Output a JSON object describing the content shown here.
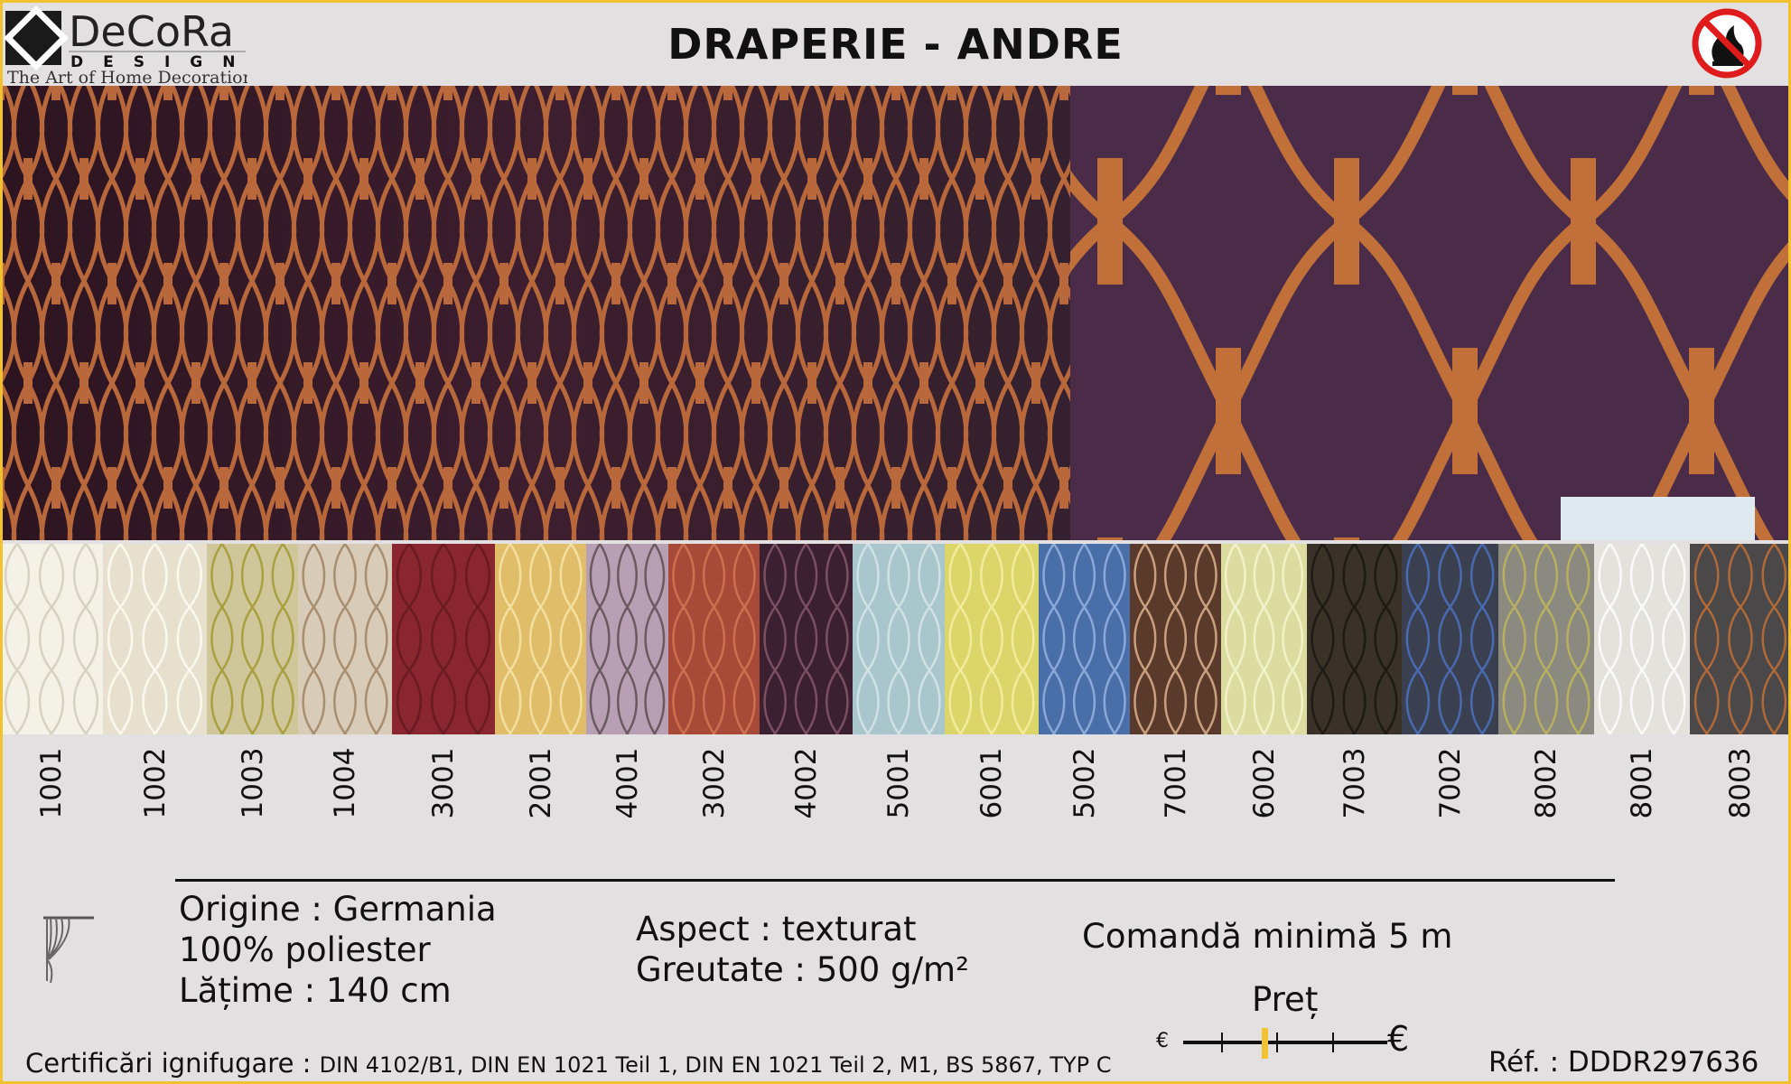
{
  "brand": {
    "name": "DeCoRa",
    "sub": "DESIGN",
    "tagline": "The Art of Home Decoration"
  },
  "title": "DRAPERIE - ANDRE",
  "icons": {
    "fire": "no-flame-fire-retardant-icon",
    "curtain": "curtain-icon"
  },
  "colors": {
    "border": "#f2c12e",
    "fabric_bg": "#3a1f2c",
    "fabric_line": "#b8683a",
    "price_marker": "#f2c12e"
  },
  "swatches": [
    {
      "code": "1001",
      "bg": "#f4f1e6",
      "line": "#d6d2c2"
    },
    {
      "code": "1002",
      "bg": "#e8e0cf",
      "line": "#fbf8ee"
    },
    {
      "code": "1003",
      "bg": "#cfc79a",
      "line": "#a8a040"
    },
    {
      "code": "1004",
      "bg": "#d8cbb8",
      "line": "#a88e70"
    },
    {
      "code": "3001",
      "bg": "#8a2630",
      "line": "#6a1a22"
    },
    {
      "code": "2001",
      "bg": "#e0bd68",
      "line": "#f3dfa0"
    },
    {
      "code": "4001",
      "bg": "#b8a0b4",
      "line": "#6a5a60"
    },
    {
      "code": "3002",
      "bg": "#a84a38",
      "line": "#cc7050"
    },
    {
      "code": "4002",
      "bg": "#3a2030",
      "line": "#7a5060"
    },
    {
      "code": "5001",
      "bg": "#a8c6cc",
      "line": "#d0e2e4"
    },
    {
      "code": "6001",
      "bg": "#dcd66a",
      "line": "#f0ec9c"
    },
    {
      "code": "5002",
      "bg": "#4a6ea8",
      "line": "#8aa8d8"
    },
    {
      "code": "7001",
      "bg": "#5a3a2a",
      "line": "#c8a080"
    },
    {
      "code": "6002",
      "bg": "#dcdca0",
      "line": "#f2f2c8"
    },
    {
      "code": "7003",
      "bg": "#3a3228",
      "line": "#1e1a14"
    },
    {
      "code": "7002",
      "bg": "#3a4050",
      "line": "#4a6ab0"
    },
    {
      "code": "8002",
      "bg": "#8a8a80",
      "line": "#b8b060"
    },
    {
      "code": "8001",
      "bg": "#e4e2dc",
      "line": "#fafaf8"
    },
    {
      "code": "8003",
      "bg": "#4a4848",
      "line": "#b06a3a"
    }
  ],
  "specs": {
    "origin": "Origine : Germania",
    "composition": "100% poliester",
    "width": "Lățime : 140 cm",
    "aspect": "Aspect : texturat",
    "weight": "Greutate : 500 g/m²",
    "min_order": "Comandă minimă 5 m"
  },
  "price": {
    "label": "Preț",
    "low_symbol": "€",
    "high_symbol": "€",
    "level": 0.4
  },
  "certifications": {
    "label": "Certificări ignifugare :",
    "value": "DIN 4102/B1, DIN EN 1021 Teil 1, DIN EN 1021 Teil 2, M1, BS 5867, TYP C"
  },
  "reference": "Réf. : DDDR297636"
}
